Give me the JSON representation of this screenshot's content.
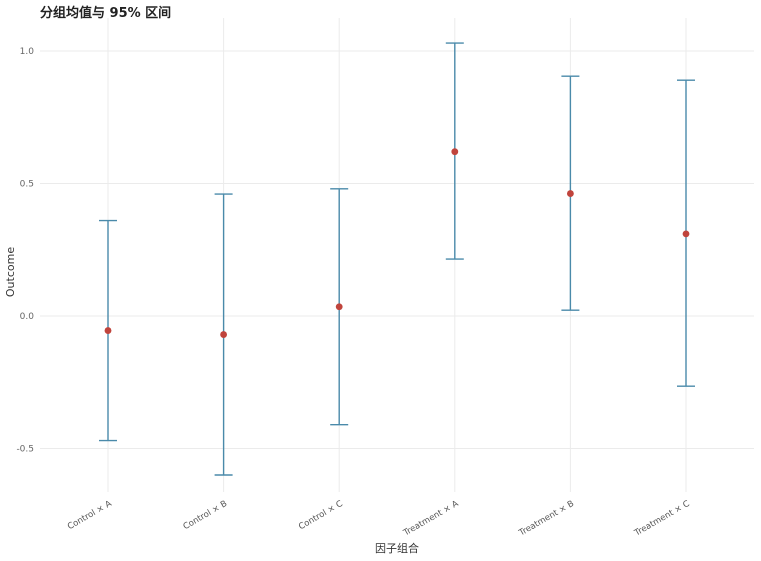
{
  "chart_data": {
    "type": "errorbar",
    "title": "分组均值与 95% 区间",
    "xlabel": "因子组合",
    "ylabel": "Outcome",
    "categories": [
      "Control × A",
      "Control × B",
      "Control × C",
      "Treatment × A",
      "Treatment × B",
      "Treatment × C"
    ],
    "means": [
      -0.055,
      -0.07,
      0.035,
      0.62,
      0.462,
      0.31
    ],
    "lower": [
      -0.47,
      -0.6,
      -0.41,
      0.215,
      0.022,
      -0.265
    ],
    "upper": [
      0.36,
      0.46,
      0.48,
      1.03,
      0.905,
      0.89
    ],
    "yticks": [
      -0.5,
      0.0,
      0.5,
      1.0
    ],
    "ytick_labels": [
      "-0.5",
      "0.0",
      "0.5",
      "1.0"
    ],
    "ylim": [
      -0.72,
      1.12
    ],
    "grid": true,
    "colors": {
      "errorbar": "#4a8aaa",
      "point": "#c0443c",
      "grid": "#ebebeb"
    }
  }
}
